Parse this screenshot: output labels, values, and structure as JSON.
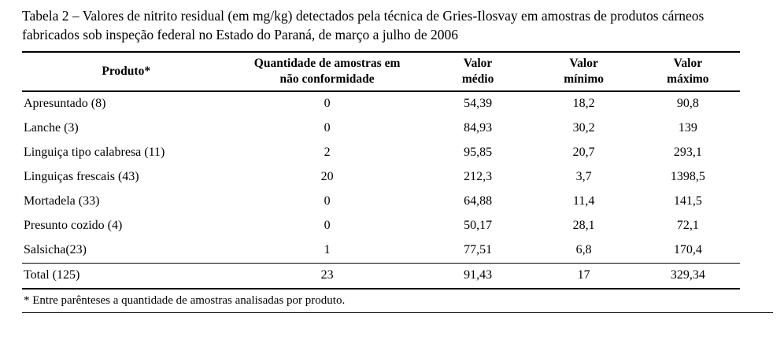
{
  "caption": "Tabela 2 – Valores de nitrito residual (em mg/kg) detectados pela técnica de Gries-Ilosvay em amostras de produtos cárneos fabricados sob inspeção federal no Estado do Paraná, de março a julho de 2006",
  "table": {
    "headers": [
      "Produto*",
      "Quantidade de amostras em\nnão conformidade",
      "Valor\nmédio",
      "Valor\nmínimo",
      "Valor\nmáximo"
    ],
    "col_widths": [
      "29%",
      "27%",
      "15%",
      "14.5%",
      "14.5%"
    ],
    "rows": [
      [
        "Apresuntado (8)",
        "0",
        "54,39",
        "18,2",
        "90,8"
      ],
      [
        "Lanche (3)",
        "0",
        "84,93",
        "30,2",
        "139"
      ],
      [
        "Linguiça tipo calabresa (11)",
        "2",
        "95,85",
        "20,7",
        "293,1"
      ],
      [
        "Linguiças frescais (43)",
        "20",
        "212,3",
        "3,7",
        "1398,5"
      ],
      [
        "Mortadela (33)",
        "0",
        "64,88",
        "11,4",
        "141,5"
      ],
      [
        "Presunto cozido (4)",
        "0",
        "50,17",
        "28,1",
        "72,1"
      ],
      [
        "Salsicha(23)",
        "1",
        "77,51",
        "6,8",
        "170,4"
      ]
    ],
    "total_row": [
      "Total (125)",
      "23",
      "91,43",
      "17",
      "329,34"
    ]
  },
  "footnote": "* Entre parênteses a quantidade de amostras analisadas por produto."
}
